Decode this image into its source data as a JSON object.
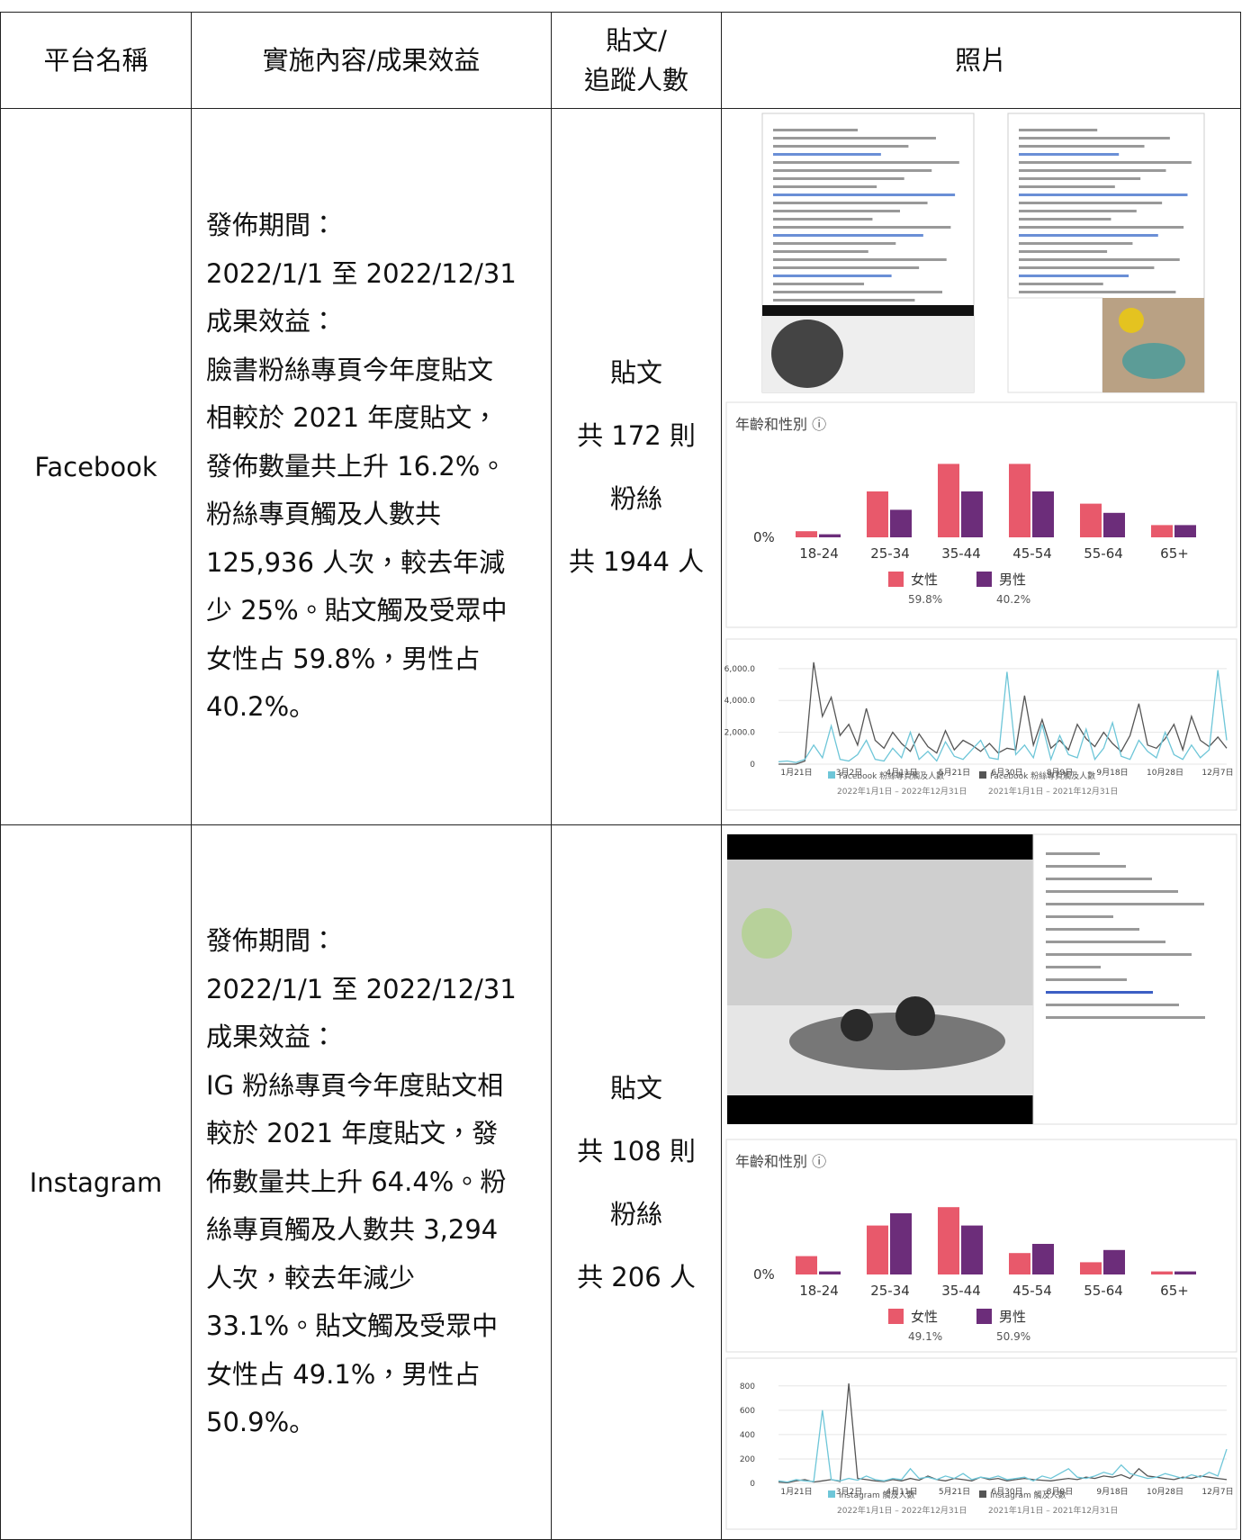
{
  "table": {
    "headers": [
      "平台名稱",
      "實施內容/成果效益",
      [
        "貼文/",
        "追蹤人數"
      ],
      "照片"
    ],
    "rows": [
      {
        "platform": "Facebook",
        "content": [
          "發佈期間：",
          "2022/1/1 至 2022/12/31",
          "成果效益：",
          "臉書粉絲專頁今年度貼文",
          "相較於 2021 年度貼文，",
          "發佈數量共上升 16.2%。",
          "粉絲專頁觸及人數共",
          "125,936 人次，較去年減",
          "少 25%。貼文觸及受眾中",
          "女性占 59.8%，男性占",
          "40.2%。"
        ],
        "stats": [
          "貼文",
          "共 172 則",
          "粉絲",
          "共 1944 人"
        ],
        "photo": {
          "age_gender": {
            "type": "bar",
            "title": "年齡和性別 ⓘ",
            "zero_label": "0%",
            "ylim": [
              0,
              25
            ],
            "categories": [
              "18-24",
              "25-34",
              "35-44",
              "45-54",
              "55-64",
              "65+"
            ],
            "series": [
              {
                "name": "女性",
                "share": "59.8%",
                "color": "#e8596b",
                "values": [
                  2,
                  15,
                  24,
                  24,
                  11,
                  4
                ]
              },
              {
                "name": "男性",
                "share": "40.2%",
                "color": "#6c2d7a",
                "values": [
                  1,
                  9,
                  15,
                  15,
                  8,
                  4
                ]
              }
            ]
          },
          "reach": {
            "type": "line",
            "ylim": [
              0,
              6500
            ],
            "yticks": [
              0,
              {
                "value": 2000,
                "label": "2,000.0"
              },
              {
                "value": 4000,
                "label": "4,000.0"
              },
              {
                "value": 6000,
                "label": "6,000.0"
              }
            ],
            "xticks": [
              "1月21日",
              "3月2日",
              "4月11日",
              "5月21日",
              "6月30日",
              "8月9日",
              "9月18日",
              "10月28日",
              "12月7日"
            ],
            "series": [
              {
                "name": "Facebook 粉絲專頁觸及人數",
                "period": "2022年1月1日 – 2022年12月31日",
                "color": "#6ec6d8",
                "values": [
                  150,
                  200,
                  100,
                  300,
                  1200,
                  400,
                  2400,
                  300,
                  200,
                  600,
                  1500,
                  300,
                  200,
                  1000,
                  400,
                  2000,
                  300,
                  800,
                  200,
                  1400,
                  500,
                  300,
                  900,
                  1500,
                  400,
                  300,
                  5800,
                  600,
                  1200,
                  400,
                  2500,
                  300,
                  1800,
                  600,
                  400,
                  2200,
                  300,
                  1000,
                  2600,
                  500,
                  300,
                  1500,
                  800,
                  400,
                  2000,
                  600,
                  300,
                  1200,
                  400,
                  900,
                  5900,
                  1500
                ]
              },
              {
                "name": "Facebook 粉絲專頁觸及人數",
                "period": "2021年1月1日 – 2021年12月31日",
                "color": "#555555",
                "values": [
                  0,
                  0,
                  0,
                  200,
                  6400,
                  3000,
                  4200,
                  1800,
                  2500,
                  1200,
                  3500,
                  1500,
                  1000,
                  2000,
                  1300,
                  800,
                  1900,
                  1100,
                  700,
                  2100,
                  900,
                  1500,
                  1200,
                  800,
                  1300,
                  700,
                  1000,
                  900,
                  4300,
                  1200,
                  2800,
                  1000,
                  1500,
                  900,
                  2500,
                  1600,
                  1100,
                  2000,
                  1300,
                  800,
                  1800,
                  3800,
                  1200,
                  1000,
                  1600,
                  2500,
                  900,
                  3000,
                  1500,
                  1100,
                  1700,
                  1000
                ]
              }
            ]
          }
        }
      },
      {
        "platform": "Instagram",
        "content": [
          "發佈期間：",
          "2022/1/1 至 2022/12/31",
          "成果效益：",
          "IG 粉絲專頁今年度貼文相",
          "較於 2021 年度貼文，發",
          "佈數量共上升 64.4%。粉",
          "絲專頁觸及人數共 3,294",
          "人次，較去年減少",
          "33.1%。貼文觸及受眾中",
          "女性占 49.1%，男性占",
          "50.9%。"
        ],
        "stats": [
          "貼文",
          "共 108 則",
          "粉絲",
          "共 206 人"
        ],
        "photo": {
          "age_gender": {
            "type": "bar",
            "title": "年齡和性別 ⓘ",
            "zero_label": "0%",
            "ylim": [
              0,
              25
            ],
            "categories": [
              "18-24",
              "25-34",
              "35-44",
              "45-54",
              "55-64",
              "65+"
            ],
            "series": [
              {
                "name": "女性",
                "share": "49.1%",
                "color": "#e8596b",
                "values": [
                  6,
                  16,
                  22,
                  7,
                  4,
                  1
                ]
              },
              {
                "name": "男性",
                "share": "50.9%",
                "color": "#6c2d7a",
                "values": [
                  1,
                  20,
                  16,
                  10,
                  8,
                  1
                ]
              }
            ]
          },
          "reach": {
            "type": "line",
            "ylim": [
              0,
              850
            ],
            "yticks": [
              0,
              200,
              400,
              600,
              800
            ],
            "xticks": [
              "1月21日",
              "3月2日",
              "4月11日",
              "5月21日",
              "6月30日",
              "8月9日",
              "9月18日",
              "10月28日",
              "12月7日"
            ],
            "series": [
              {
                "name": "Instagram 觸及人數",
                "period": "2022年1月1日 – 2022年12月31日",
                "color": "#6ec6d8",
                "values": [
                  20,
                  10,
                  30,
                  20,
                  15,
                  600,
                  30,
                  20,
                  40,
                  25,
                  60,
                  30,
                  20,
                  40,
                  30,
                  120,
                  40,
                  50,
                  30,
                  60,
                  40,
                  80,
                  30,
                  50,
                  40,
                  60,
                  30,
                  40,
                  50,
                  20,
                  60,
                  40,
                  80,
                  120,
                  50,
                  40,
                  60,
                  90,
                  70,
                  150,
                  80,
                  60,
                  40,
                  50,
                  80,
                  60,
                  40,
                  70,
                  50,
                  90,
                  60,
                  280
                ]
              },
              {
                "name": "Instagram 觸及人數",
                "period": "2021年1月1日 – 2021年12月31日",
                "color": "#555555",
                "values": [
                  10,
                  5,
                  20,
                  30,
                  10,
                  20,
                  30,
                  15,
                  820,
                  40,
                  30,
                  20,
                  15,
                  30,
                  20,
                  40,
                  25,
                  60,
                  30,
                  20,
                  40,
                  30,
                  20,
                  50,
                  30,
                  40,
                  20,
                  30,
                  40,
                  30,
                  25,
                  20,
                  30,
                  40,
                  30,
                  50,
                  40,
                  60,
                  50,
                  70,
                  40,
                  120,
                  60,
                  50,
                  40,
                  30,
                  50,
                  40,
                  60,
                  50,
                  40,
                  30
                ]
              }
            ]
          }
        }
      }
    ]
  }
}
